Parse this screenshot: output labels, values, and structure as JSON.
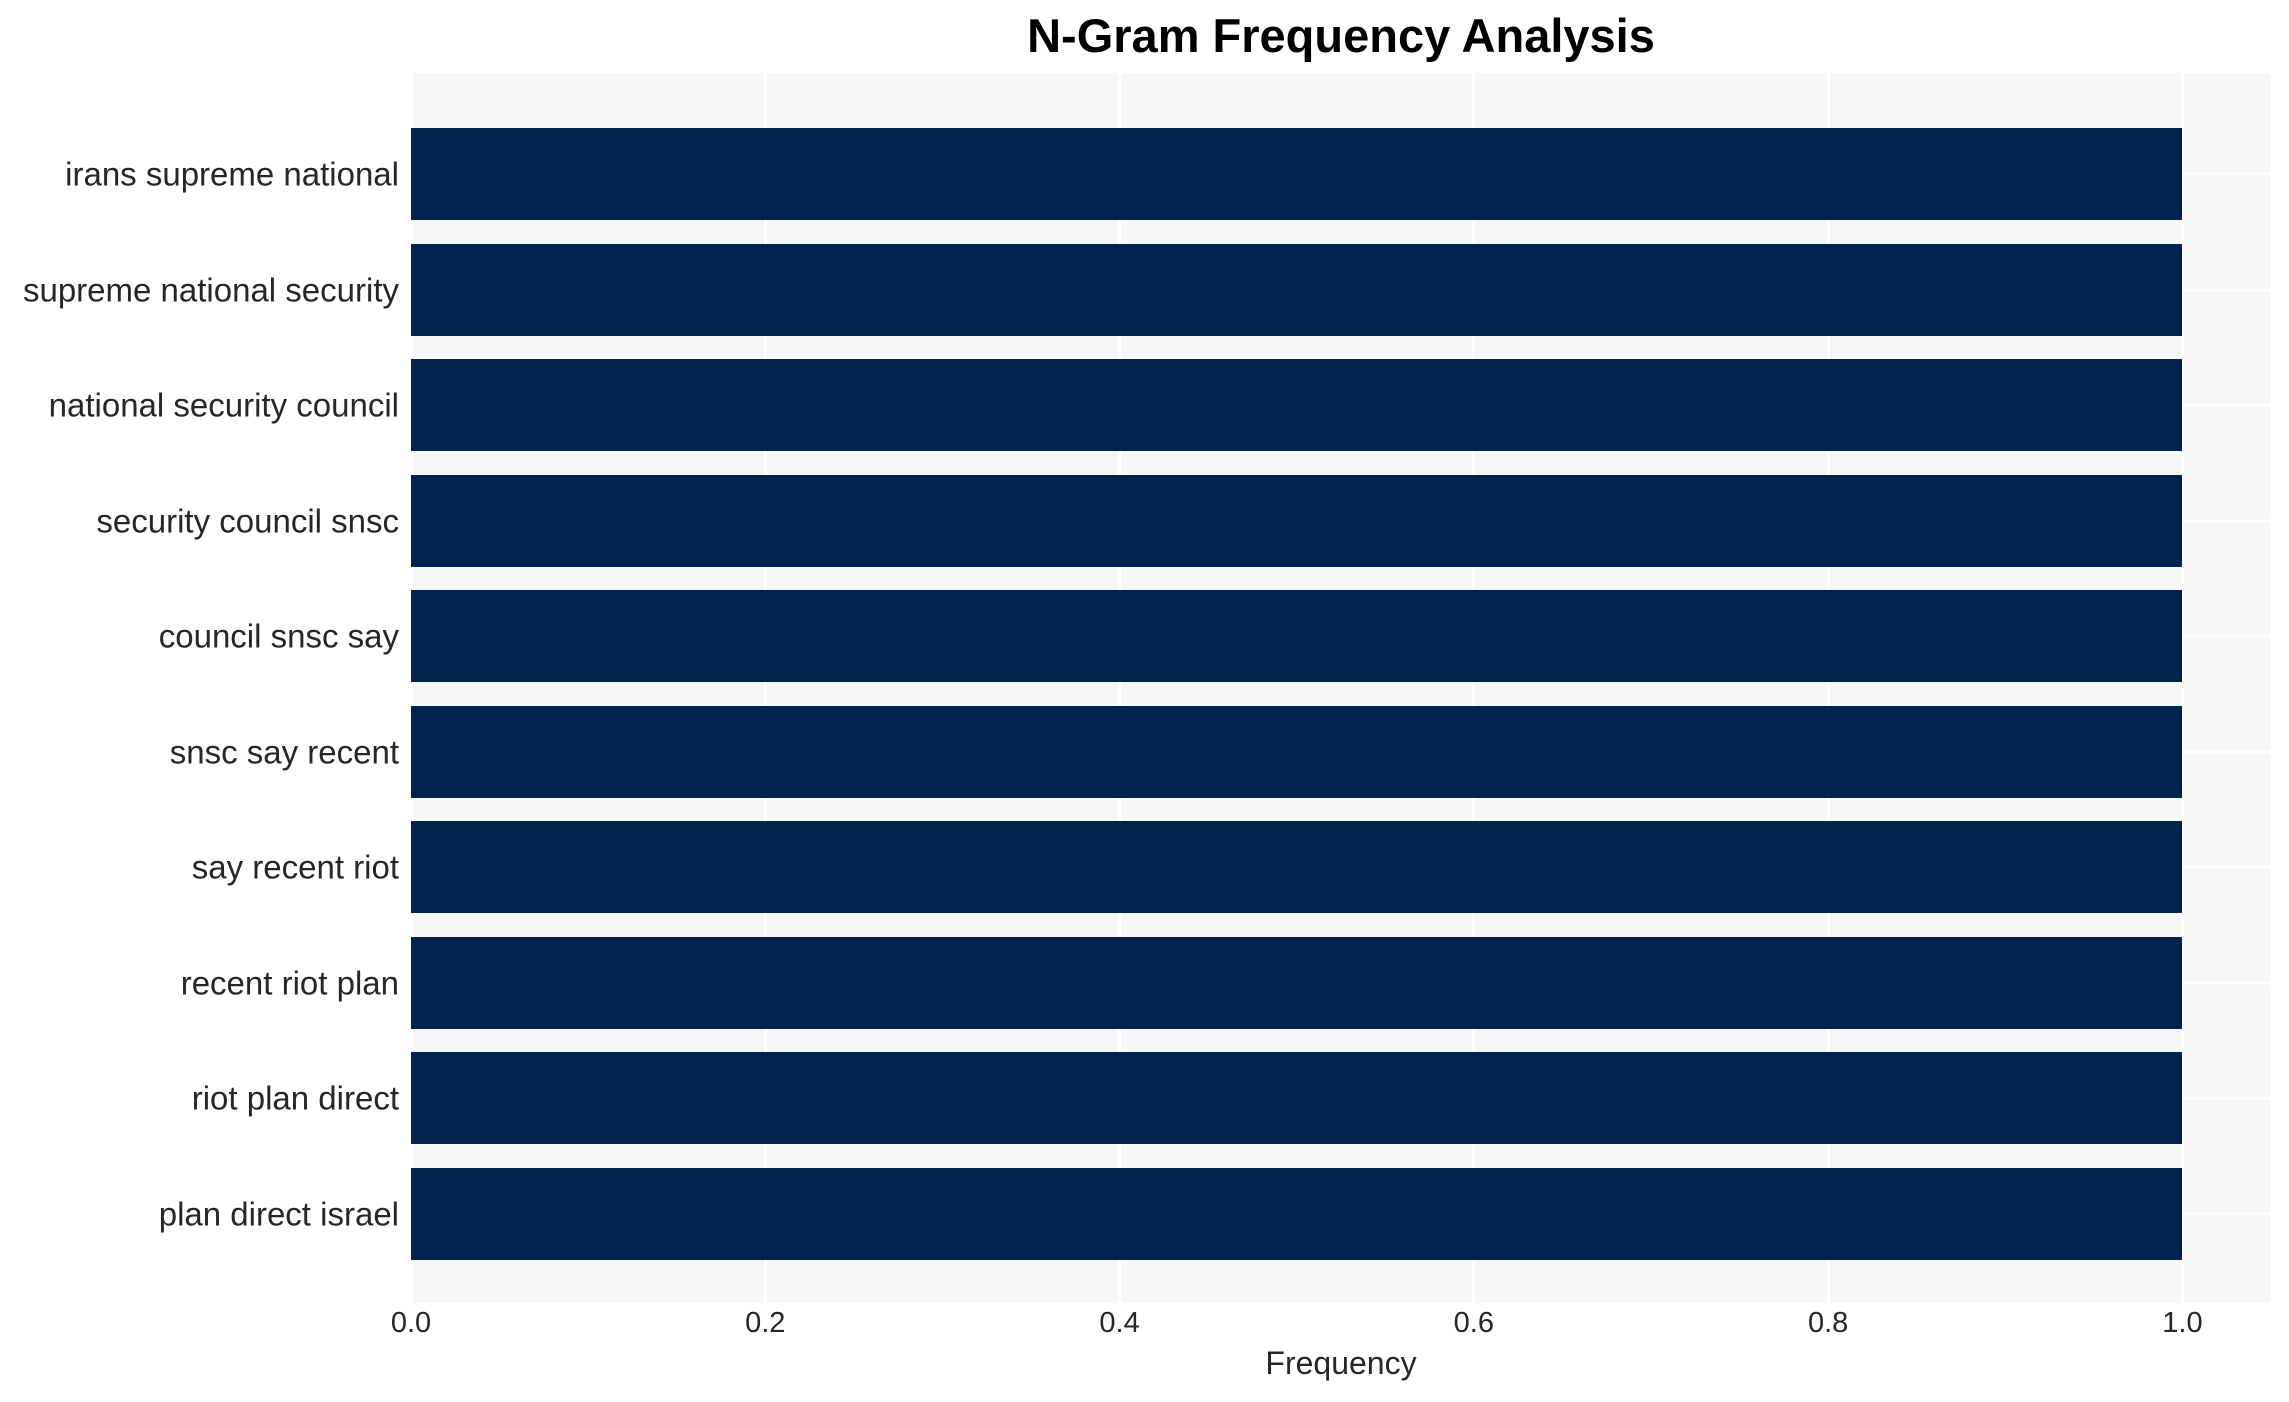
{
  "chart_data": {
    "type": "bar",
    "orientation": "horizontal",
    "title": "N-Gram Frequency Analysis",
    "xlabel": "Frequency",
    "ylabel": "",
    "categories": [
      "irans supreme national",
      "supreme national security",
      "national security council",
      "security council snsc",
      "council snsc say",
      "snsc say recent",
      "say recent riot",
      "recent riot plan",
      "riot plan direct",
      "plan direct israel"
    ],
    "values": [
      1.0,
      1.0,
      1.0,
      1.0,
      1.0,
      1.0,
      1.0,
      1.0,
      1.0,
      1.0
    ],
    "x_tick_labels": [
      "0.0",
      "0.2",
      "0.4",
      "0.6",
      "0.8",
      "1.0"
    ],
    "x_tick_values": [
      0.0,
      0.2,
      0.4,
      0.6,
      0.8,
      1.0
    ],
    "xlim": [
      0,
      1.05
    ],
    "grid": true,
    "grid_style": "white vertical lines at x ticks and white horizontal lines at category centers on light gray panel",
    "legend": false,
    "colors": {
      "bar": "#02234d",
      "plot_background": "#f7f7f7",
      "figure_background": "#ffffff",
      "gridline": "#ffffff",
      "title_text": "#000000",
      "tick_text": "#262626"
    }
  }
}
